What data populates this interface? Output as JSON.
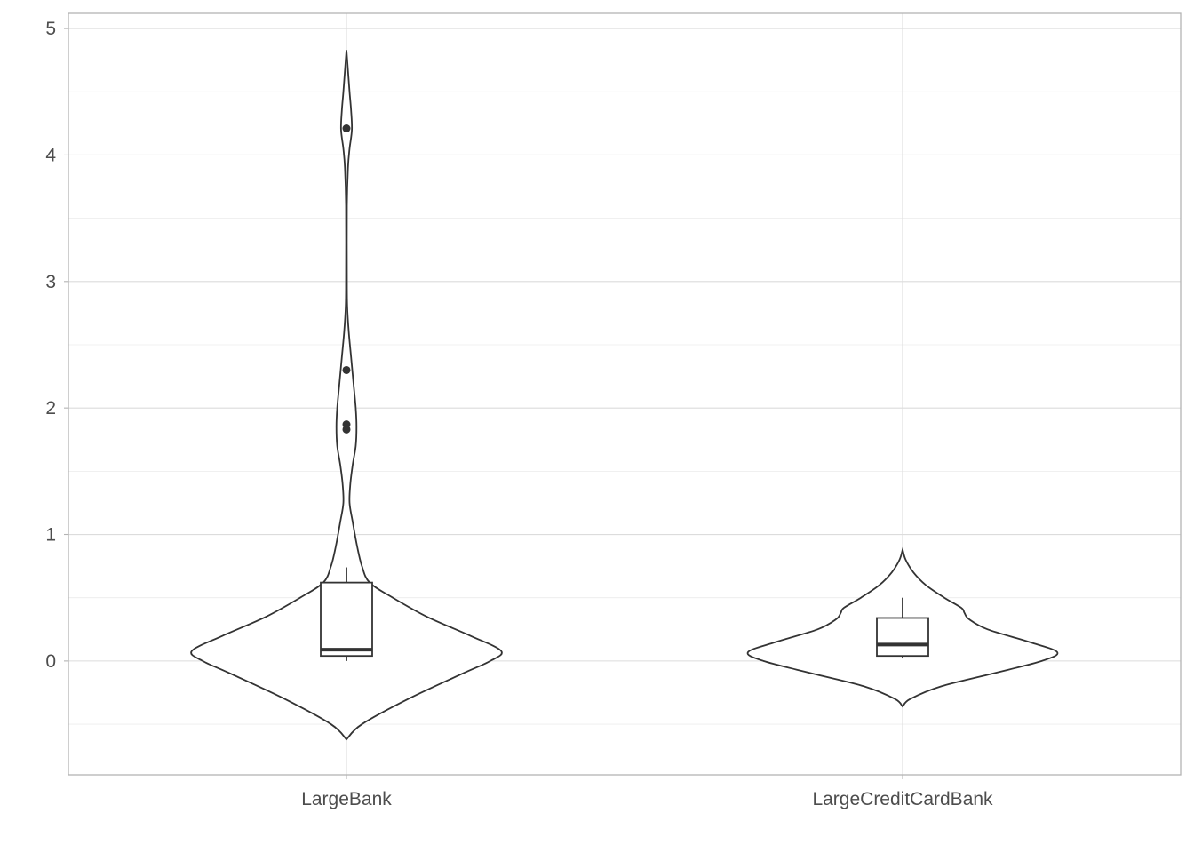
{
  "chart_data": {
    "type": "violin",
    "title": "",
    "xlabel": "",
    "ylabel": "",
    "ylim": [
      -0.9,
      5.12
    ],
    "y_ticks": [
      0,
      1,
      2,
      3,
      4,
      5
    ],
    "y_tick_labels": [
      "0",
      "1",
      "2",
      "3",
      "4",
      "5"
    ],
    "grid": true,
    "categories": [
      "LargeBank",
      "LargeCreditCardBank"
    ],
    "groups": [
      {
        "category": "LargeBank",
        "violin_range": [
          -0.62,
          4.83
        ],
        "violin_profile": [
          [
            -0.62,
            0.0
          ],
          [
            -0.5,
            0.1
          ],
          [
            -0.3,
            0.4
          ],
          [
            -0.1,
            0.75
          ],
          [
            0.0,
            0.93
          ],
          [
            0.08,
            1.0
          ],
          [
            0.2,
            0.8
          ],
          [
            0.35,
            0.52
          ],
          [
            0.5,
            0.3
          ],
          [
            0.62,
            0.15
          ],
          [
            0.75,
            0.1
          ],
          [
            0.9,
            0.07
          ],
          [
            1.1,
            0.04
          ],
          [
            1.25,
            0.02
          ],
          [
            1.4,
            0.025
          ],
          [
            1.55,
            0.04
          ],
          [
            1.7,
            0.06
          ],
          [
            1.85,
            0.065
          ],
          [
            2.0,
            0.06
          ],
          [
            2.2,
            0.045
          ],
          [
            2.4,
            0.03
          ],
          [
            2.6,
            0.015
          ],
          [
            2.8,
            0.005
          ],
          [
            3.0,
            0.003
          ],
          [
            3.6,
            0.003
          ],
          [
            3.9,
            0.01
          ],
          [
            4.05,
            0.02
          ],
          [
            4.2,
            0.035
          ],
          [
            4.35,
            0.03
          ],
          [
            4.5,
            0.02
          ],
          [
            4.7,
            0.008
          ],
          [
            4.83,
            0.0
          ]
        ],
        "box": {
          "whisker_low": 0.0,
          "q1": 0.04,
          "median": 0.09,
          "q3": 0.62,
          "whisker_high": 0.74
        },
        "outliers": [
          4.21,
          2.3,
          1.87,
          1.83
        ]
      },
      {
        "category": "LargeCreditCardBank",
        "violin_range": [
          -0.36,
          0.88
        ],
        "violin_profile": [
          [
            -0.36,
            0.0
          ],
          [
            -0.3,
            0.05
          ],
          [
            -0.2,
            0.25
          ],
          [
            -0.1,
            0.58
          ],
          [
            0.0,
            0.9
          ],
          [
            0.07,
            1.0
          ],
          [
            0.15,
            0.82
          ],
          [
            0.25,
            0.55
          ],
          [
            0.33,
            0.43
          ],
          [
            0.38,
            0.4
          ],
          [
            0.42,
            0.38
          ],
          [
            0.5,
            0.27
          ],
          [
            0.6,
            0.15
          ],
          [
            0.7,
            0.07
          ],
          [
            0.8,
            0.02
          ],
          [
            0.88,
            0.0
          ]
        ],
        "box": {
          "whisker_low": 0.02,
          "q1": 0.04,
          "median": 0.13,
          "q3": 0.34,
          "whisker_high": 0.5
        },
        "outliers": []
      }
    ]
  }
}
